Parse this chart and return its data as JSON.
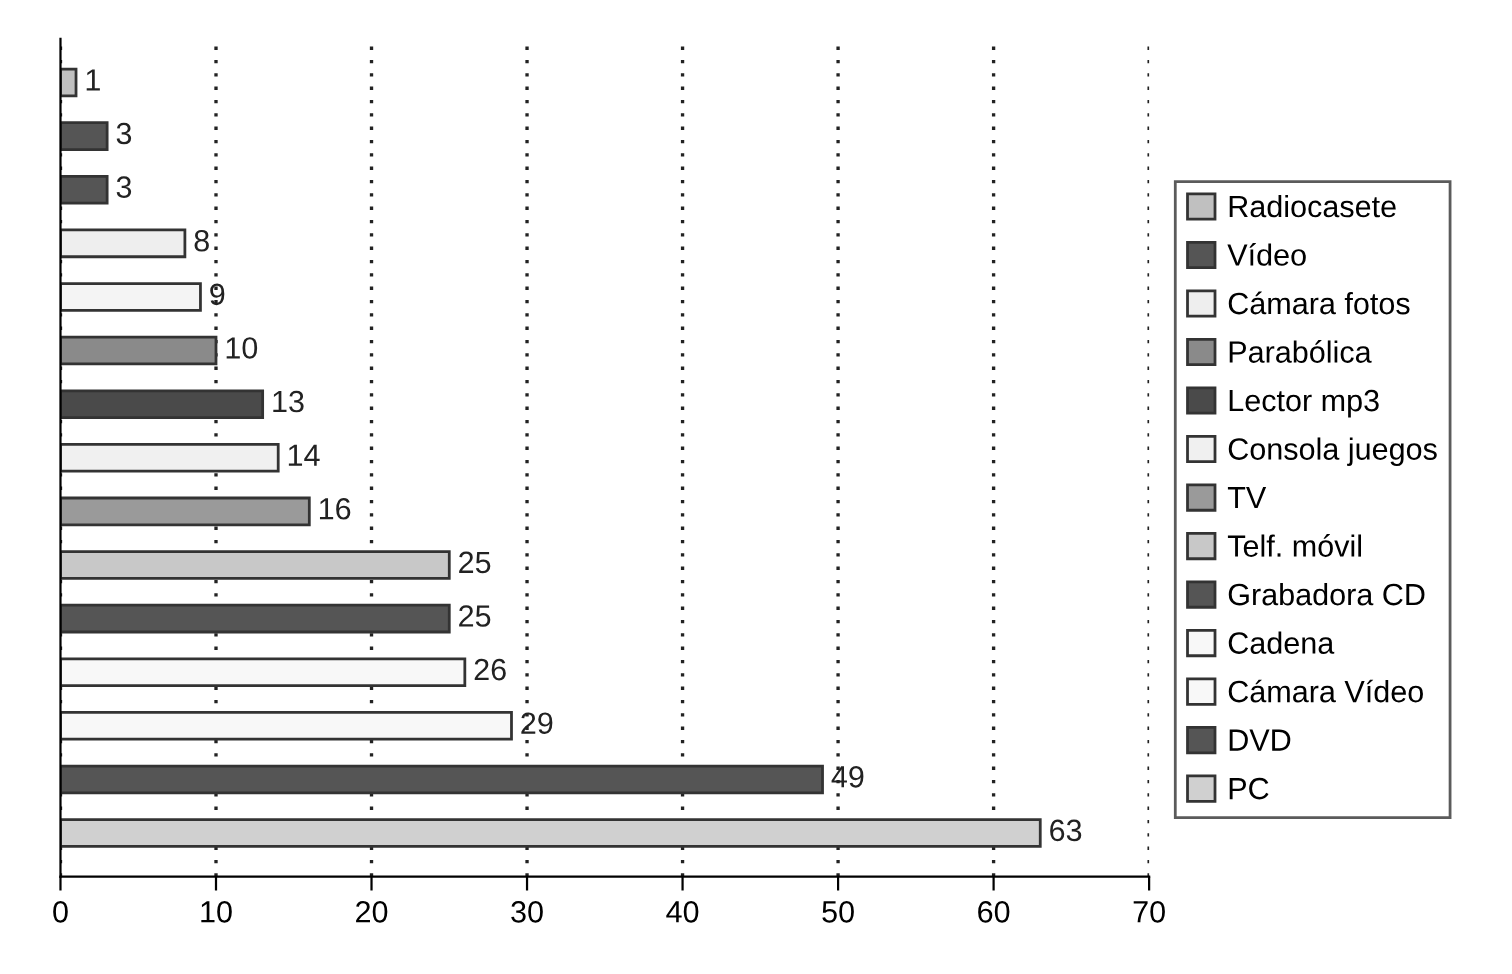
{
  "chart_data": {
    "type": "bar",
    "orientation": "horizontal",
    "categories": [
      null
    ],
    "series": [
      {
        "name": "Radiocasete",
        "color": "#c0c0c0",
        "values": [
          1
        ]
      },
      {
        "color": "#555555",
        "values": [
          3
        ]
      },
      {
        "name": "Vídeo",
        "color": "#555555",
        "values": [
          3
        ]
      },
      {
        "name": "Cámara fotos",
        "color": "#eeeeee",
        "values": [
          8
        ]
      },
      {
        "color": "#f4f4f4",
        "values": [
          9
        ]
      },
      {
        "name": "Parabólica",
        "color": "#8a8a8a",
        "values": [
          10
        ]
      },
      {
        "name": "Lector mp3",
        "color": "#4a4a4a",
        "values": [
          13
        ]
      },
      {
        "name": "Consola juegos",
        "color": "#f0f0f0",
        "values": [
          14
        ]
      },
      {
        "name": "TV",
        "color": "#9a9a9a",
        "values": [
          16
        ]
      },
      {
        "name": "Telf. móvil",
        "color": "#c8c8c8",
        "values": [
          25
        ]
      },
      {
        "name": "Grabadora CD",
        "color": "#555555",
        "values": [
          25
        ]
      },
      {
        "name": "Cadena",
        "color": "#f8f8f8",
        "values": [
          26
        ]
      },
      {
        "name": "Cámara Vídeo",
        "color": "#f8f8f8",
        "values": [
          29
        ]
      },
      {
        "name": "DVD",
        "color": "#555555",
        "values": [
          49
        ]
      },
      {
        "name": "PC",
        "color": "#d0d0d0",
        "values": [
          63
        ]
      }
    ],
    "xlim": [
      0,
      70
    ],
    "xticks": [
      0,
      10,
      20,
      30,
      40,
      50,
      60,
      70
    ],
    "grid": "x",
    "legend": "right",
    "tick_labels": "x",
    "data_labels": true
  }
}
